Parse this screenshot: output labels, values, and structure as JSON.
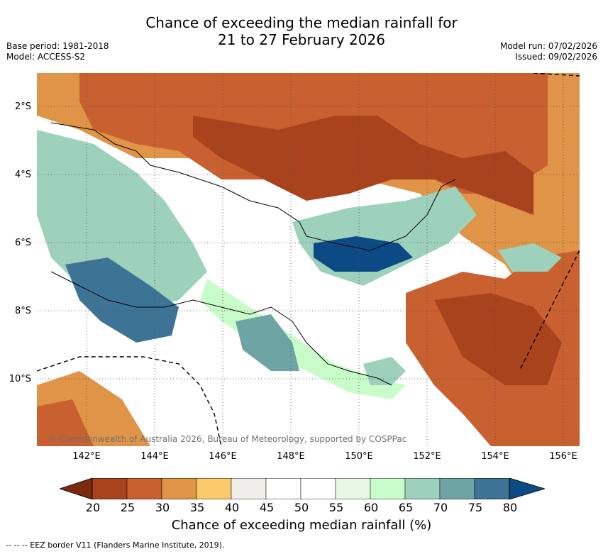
{
  "title": {
    "line1": "Chance of exceeding the median rainfall for",
    "line2": "21 to 27 February 2026"
  },
  "meta_left": {
    "base_period": "Base period: 1981-2018",
    "model": "Model: ACCESS-S2"
  },
  "meta_right": {
    "model_run": "Model run: 07/02/2026",
    "issued": "Issued: 09/02/2026"
  },
  "axes": {
    "y_ticks": [
      "2°S",
      "4°S",
      "6°S",
      "8°S",
      "10°S"
    ],
    "x_ticks": [
      "142°E",
      "144°E",
      "146°E",
      "148°E",
      "150°E",
      "152°E",
      "154°E",
      "156°E"
    ]
  },
  "copyright": "© Commonwealth of Australia 2026, Bureau of Meteorology, supported by COSPPac",
  "colorbar": {
    "title": "Chance of exceeding median rainfall (%)",
    "labels": [
      "20",
      "25",
      "30",
      "35",
      "40",
      "45",
      "50",
      "55",
      "60",
      "65",
      "70",
      "75",
      "80"
    ],
    "colors": [
      "#a9431e",
      "#c8602f",
      "#e09448",
      "#fcc96b",
      "#f0eee8",
      "#ffffff",
      "#ffffff",
      "#e9f7e6",
      "#c8fcc9",
      "#9dd1bb",
      "#6ea5a4",
      "#3d7495",
      "#0c4a85"
    ]
  },
  "footnote": "-- -- -- EEZ border V11 (Flanders Marine Institute, 2019)."
}
